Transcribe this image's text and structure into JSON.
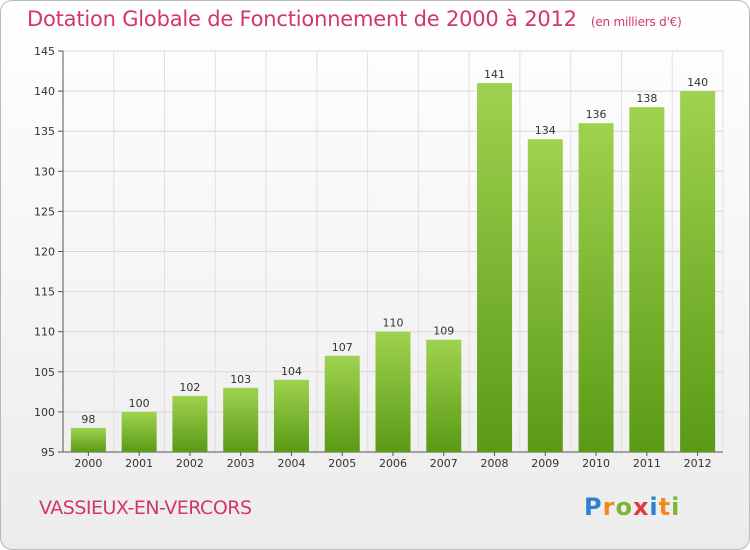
{
  "title": "Dotation Globale de Fonctionnement de 2000 à 2012",
  "unit_note": "(en milliers d'€)",
  "commune": "VASSIEUX-EN-VERCORS",
  "logo": {
    "text": "Proxiti",
    "letters": [
      "P",
      "r",
      "o",
      "x",
      "i",
      "t",
      "i"
    ],
    "colors": [
      "#2f7fd1",
      "#f08a1c",
      "#7db52e",
      "#e23b3b",
      "#2f7fd1",
      "#f08a1c",
      "#7db52e"
    ]
  },
  "colors": {
    "title": "#d2366e",
    "bar_top": "#9fd24f",
    "bar_bottom": "#5a9a16"
  },
  "chart_data": {
    "type": "bar",
    "categories": [
      "2000",
      "2001",
      "2002",
      "2003",
      "2004",
      "2005",
      "2006",
      "2007",
      "2008",
      "2009",
      "2010",
      "2011",
      "2012"
    ],
    "values": [
      98,
      100,
      102,
      103,
      104,
      107,
      110,
      109,
      141,
      134,
      136,
      138,
      140
    ],
    "ylim": [
      95,
      145
    ],
    "yticks": [
      95,
      100,
      105,
      110,
      115,
      120,
      125,
      130,
      135,
      140,
      145
    ],
    "grid": true
  }
}
